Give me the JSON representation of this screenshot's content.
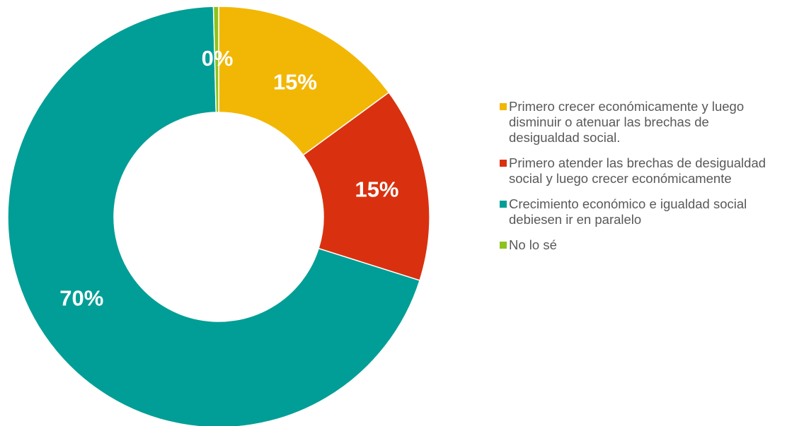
{
  "chart_data": {
    "type": "pie",
    "donut": true,
    "legend_position": "right",
    "slices": [
      {
        "label": "Primero crecer económicamente y luego disminuir o atenuar las brechas de desigualdad social.",
        "value": 15,
        "display": "15%",
        "color": "#F2B705"
      },
      {
        "label": "Primero atender las brechas de desigualdad social y luego crecer económicamente",
        "value": 15,
        "display": "15%",
        "color": "#D9310F"
      },
      {
        "label": "Crecimiento económico e igualdad social debiesen ir en paralelo",
        "value": 70,
        "display": "70%",
        "color": "#009E96"
      },
      {
        "label": "No lo sé",
        "value": 0.4,
        "display": "0%",
        "color": "#8DC21F"
      }
    ]
  }
}
